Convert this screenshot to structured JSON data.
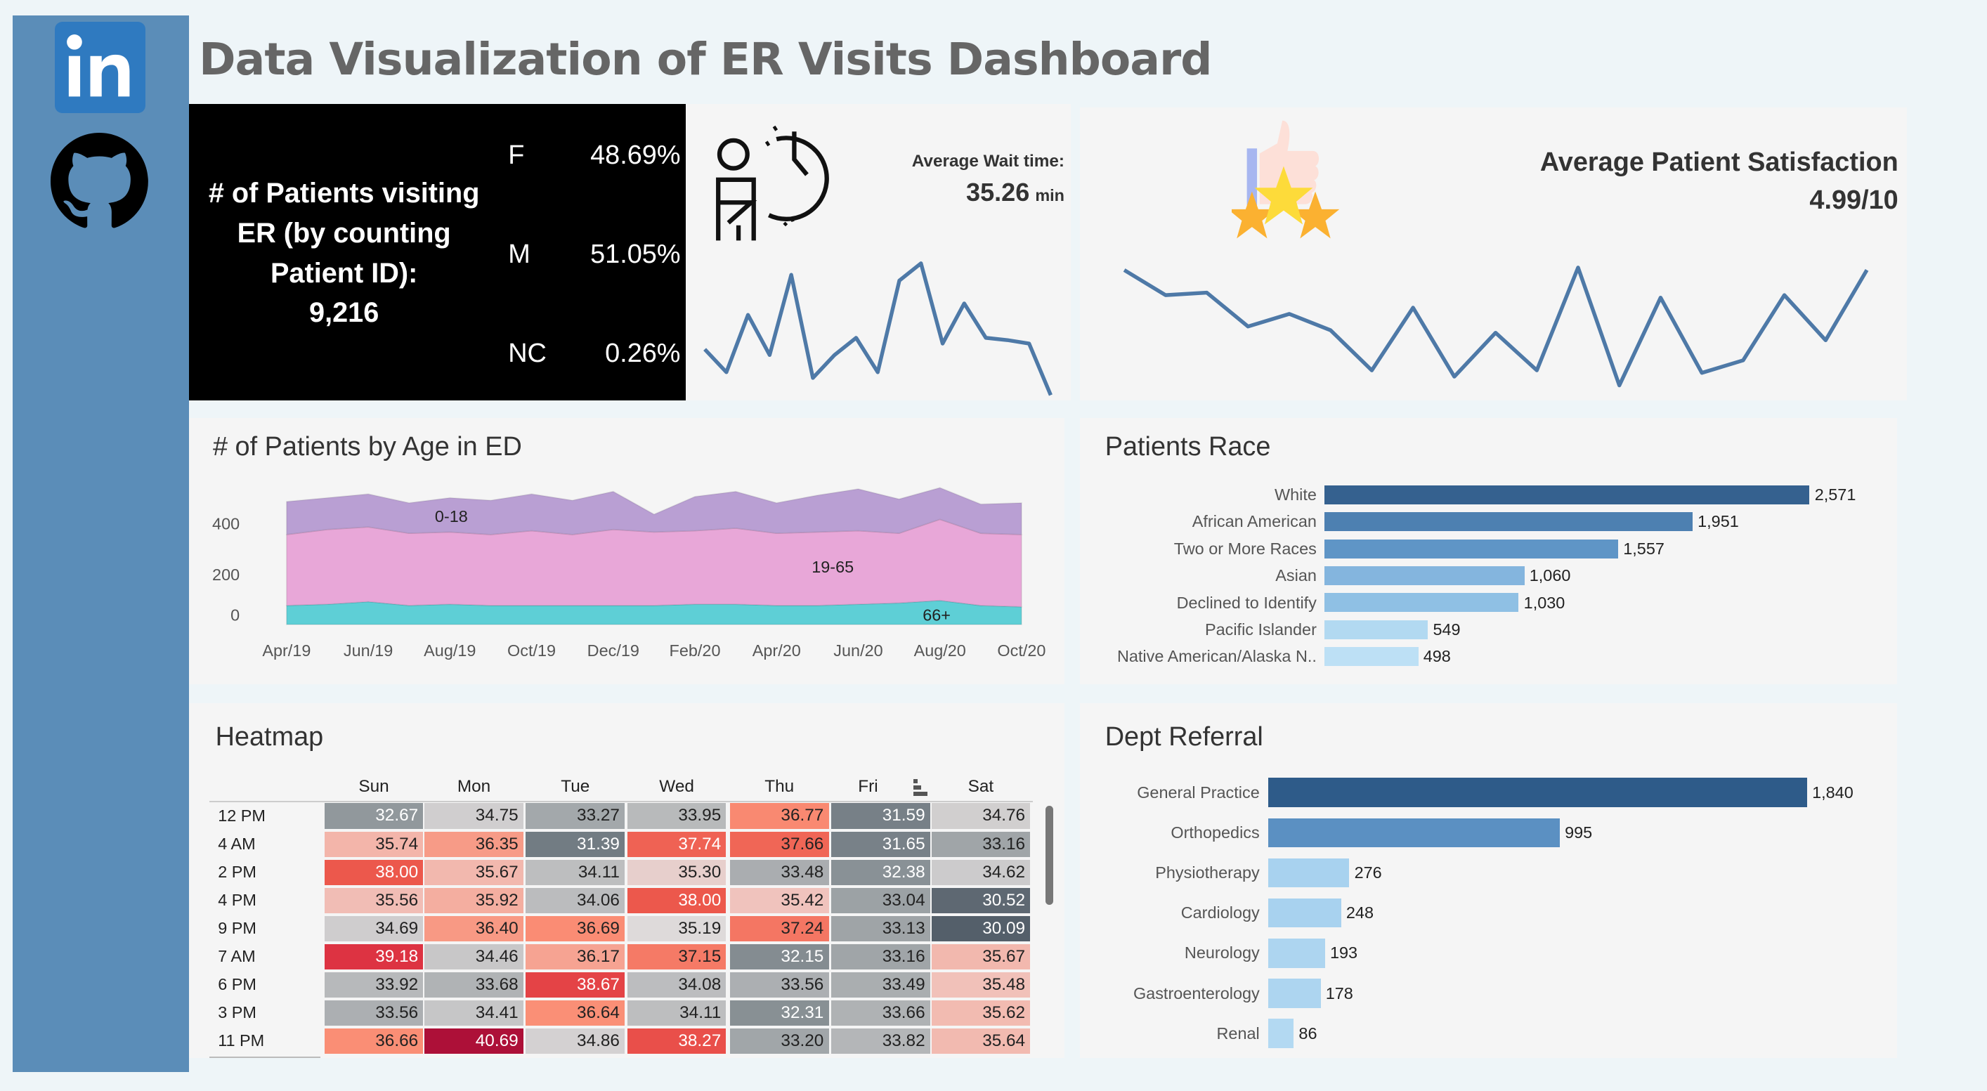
{
  "sidebar": {
    "links": [
      {
        "icon": "linkedin-icon"
      },
      {
        "icon": "github-icon"
      }
    ],
    "color": "#5b8db8"
  },
  "header": {
    "title": "Data Visualization of ER Visits Dashboard"
  },
  "patients": {
    "label_lines": [
      "# of Patients visiting",
      "ER (by counting",
      "Patient ID):"
    ],
    "count": "9,216",
    "gender": [
      {
        "code": "F",
        "pct": "48.69%"
      },
      {
        "code": "M",
        "pct": "51.05%"
      },
      {
        "code": "NC",
        "pct": "0.26%"
      }
    ]
  },
  "wait_time": {
    "label": "Average Wait time:",
    "value": "35.26",
    "unit": "min",
    "icon": "waiting-person-clock-icon",
    "sparkline": [
      37,
      35,
      40,
      36.5,
      43.5,
      34.5,
      36.5,
      38,
      35,
      43,
      44.5,
      37.5,
      41,
      38,
      37.8,
      37.5,
      33
    ]
  },
  "satisfaction": {
    "label": "Average Patient Satisfaction",
    "value": "4.99/10",
    "icon": "thumbs-up-stars-icon",
    "sparkline": [
      5.2,
      5.0,
      5.02,
      4.75,
      4.85,
      4.72,
      4.4,
      4.9,
      4.35,
      4.7,
      4.4,
      5.22,
      4.28,
      4.98,
      4.38,
      4.48,
      5.0,
      4.64,
      5.2
    ]
  },
  "age_chart": {
    "title": "# of Patients by Age in ED",
    "chart_data": {
      "type": "area",
      "stacked": true,
      "x": [
        "Apr/19",
        "May/19",
        "Jun/19",
        "Jul/19",
        "Aug/19",
        "Sep/19",
        "Oct/19",
        "Nov/19",
        "Dec/19",
        "Jan/20",
        "Feb/20",
        "Mar/20",
        "Apr/20",
        "May/20",
        "Jun/20",
        "Jul/20",
        "Aug/20",
        "Sep/20",
        "Oct/20"
      ],
      "x_tick_labels": [
        "Apr/19",
        "Jun/19",
        "Aug/19",
        "Oct/19",
        "Dec/19",
        "Feb/20",
        "Apr/20",
        "Jun/20",
        "Aug/20",
        "Oct/20"
      ],
      "y_ticks": [
        0,
        200,
        400
      ],
      "ylim": [
        0,
        560
      ],
      "series": [
        {
          "name": "66+",
          "color": "#5ecfd6",
          "values": [
            75,
            80,
            90,
            75,
            80,
            75,
            75,
            75,
            75,
            75,
            80,
            80,
            75,
            75,
            80,
            85,
            95,
            75,
            70
          ]
        },
        {
          "name": "19-65",
          "color": "#e8a7d8",
          "values": [
            280,
            295,
            295,
            285,
            285,
            280,
            295,
            280,
            300,
            290,
            290,
            300,
            285,
            290,
            290,
            275,
            320,
            285,
            285
          ]
        },
        {
          "name": "0-18",
          "color": "#b99fd3",
          "values": [
            130,
            125,
            130,
            120,
            135,
            135,
            145,
            135,
            150,
            70,
            135,
            145,
            120,
            145,
            165,
            135,
            125,
            115,
            125
          ]
        }
      ]
    }
  },
  "race": {
    "title": "Patients Race",
    "chart_data": {
      "type": "bar",
      "orientation": "horizontal",
      "categories": [
        "White",
        "African American",
        "Two or More Races",
        "Asian",
        "Declined to Identify",
        "Pacific Islander",
        "Native American/Alaska N.."
      ],
      "values": [
        2571,
        1951,
        1557,
        1060,
        1030,
        549,
        498
      ],
      "labels": [
        "2,571",
        "1,951",
        "1,557",
        "1,060",
        "1,030",
        "549",
        "498"
      ],
      "colors": [
        "#35618f",
        "#4d80b1",
        "#5f95c6",
        "#84b5de",
        "#8fc0e4",
        "#b2d9f1",
        "#bde0f5"
      ]
    }
  },
  "dept": {
    "title": "Dept Referral",
    "chart_data": {
      "type": "bar",
      "orientation": "horizontal",
      "categories": [
        "General Practice",
        "Orthopedics",
        "Physiotherapy",
        "Cardiology",
        "Neurology",
        "Gastroenterology",
        "Renal"
      ],
      "values": [
        1840,
        995,
        276,
        248,
        193,
        178,
        86
      ],
      "labels": [
        "1,840",
        "995",
        "276",
        "248",
        "193",
        "178",
        "86"
      ],
      "colors": [
        "#2e5b89",
        "#5b90c2",
        "#a8d2ef",
        "#a8d2ef",
        "#add5f0",
        "#add5f0",
        "#b3d9f2"
      ]
    }
  },
  "heatmap": {
    "title": "Heatmap",
    "sort_icon": "sort-icon",
    "chart_data": {
      "type": "heatmap",
      "columns": [
        "Sun",
        "Mon",
        "Tue",
        "Wed",
        "Thu",
        "Fri",
        "Sat"
      ],
      "rows": [
        "12 PM",
        "4 AM",
        "2 PM",
        "4 PM",
        "9 PM",
        "7 AM",
        "6 PM",
        "3 PM",
        "11 PM"
      ],
      "values": [
        [
          "32.67",
          "34.75",
          "33.27",
          "33.95",
          "36.77",
          "31.59",
          "34.76"
        ],
        [
          "35.74",
          "36.35",
          "31.39",
          "37.74",
          "37.66",
          "31.65",
          "33.16"
        ],
        [
          "38.00",
          "35.67",
          "34.11",
          "35.30",
          "33.48",
          "32.38",
          "34.62"
        ],
        [
          "35.56",
          "35.92",
          "34.06",
          "38.00",
          "35.42",
          "33.04",
          "30.52"
        ],
        [
          "34.69",
          "36.40",
          "36.69",
          "35.19",
          "37.24",
          "33.13",
          "30.09"
        ],
        [
          "39.18",
          "34.46",
          "36.17",
          "37.15",
          "32.15",
          "33.16",
          "35.67"
        ],
        [
          "33.92",
          "33.68",
          "38.67",
          "34.08",
          "33.56",
          "33.49",
          "35.48"
        ],
        [
          "33.56",
          "34.41",
          "36.64",
          "34.11",
          "32.31",
          "33.66",
          "35.62"
        ],
        [
          "36.66",
          "40.69",
          "34.86",
          "38.27",
          "33.20",
          "33.82",
          "35.64"
        ]
      ]
    }
  }
}
